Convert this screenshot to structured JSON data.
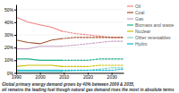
{
  "chart_data": {
    "type": "line",
    "title": "Global primary energy demand grows by 40% between 2009 & 2035,",
    "subtitle": "oil remains the leading fuel though natural gas demand rises the most in absolute terms",
    "x": [
      1990,
      1995,
      2000,
      2005,
      2009,
      2015,
      2020,
      2025,
      2030,
      2035
    ],
    "series": [
      {
        "name": "Oil",
        "color": "#f08080",
        "line_style": "solid",
        "values": [
          44,
          40,
          38,
          36,
          33,
          null,
          null,
          null,
          null,
          null
        ]
      },
      {
        "name": "Oil",
        "color": "#f08080",
        "line_style": "dashed",
        "values": [
          null,
          null,
          null,
          null,
          33,
          31,
          30,
          29,
          28,
          28
        ]
      },
      {
        "name": "Coal",
        "color": "#a0522d",
        "line_style": "solid",
        "values": [
          26,
          24,
          23,
          26,
          27,
          null,
          null,
          null,
          null,
          null
        ]
      },
      {
        "name": "Coal",
        "color": "#a0522d",
        "line_style": "dashed",
        "values": [
          null,
          null,
          null,
          null,
          27,
          28,
          28,
          28,
          28,
          28
        ]
      },
      {
        "name": "Gas",
        "color": "#c8a0c8",
        "line_style": "solid",
        "values": [
          19,
          19,
          21,
          21,
          21,
          null,
          null,
          null,
          null,
          null
        ]
      },
      {
        "name": "Gas",
        "color": "#c8a0c8",
        "line_style": "dashed",
        "values": [
          null,
          null,
          null,
          null,
          21,
          22,
          23,
          24,
          25,
          25
        ]
      },
      {
        "name": "Biomass and waste",
        "color": "#20b090",
        "line_style": "solid",
        "values": [
          11,
          11,
          10,
          10,
          10,
          null,
          null,
          null,
          null,
          null
        ]
      },
      {
        "name": "Biomass and waste",
        "color": "#20b090",
        "line_style": "dashed",
        "values": [
          null,
          null,
          null,
          null,
          10,
          10,
          10,
          11,
          11,
          11
        ]
      },
      {
        "name": "Nuclear",
        "color": "#c8c000",
        "line_style": "solid",
        "values": [
          5,
          6,
          6,
          6,
          5,
          null,
          null,
          null,
          null,
          null
        ]
      },
      {
        "name": "Nuclear",
        "color": "#c8c000",
        "line_style": "dashed",
        "values": [
          null,
          null,
          null,
          null,
          5,
          5,
          5,
          6,
          6,
          6
        ]
      },
      {
        "name": "Other renewables",
        "color": "#80d0c8",
        "line_style": "solid",
        "values": [
          1,
          1,
          1,
          1,
          1,
          null,
          null,
          null,
          null,
          null
        ]
      },
      {
        "name": "Other renewables",
        "color": "#80d0c8",
        "line_style": "dashed",
        "values": [
          null,
          null,
          null,
          null,
          1,
          2,
          2,
          3,
          4,
          4
        ]
      },
      {
        "name": "Hydro",
        "color": "#00b8d8",
        "line_style": "solid",
        "values": [
          2,
          2,
          2,
          2,
          2,
          null,
          null,
          null,
          null,
          null
        ]
      },
      {
        "name": "Hydro",
        "color": "#00b8d8",
        "line_style": "dashed",
        "values": [
          null,
          null,
          null,
          null,
          2,
          2,
          2,
          2,
          2,
          3
        ]
      }
    ],
    "xlim": [
      1990,
      2035
    ],
    "xticks": [
      1990,
      2000,
      2010,
      2020,
      2030
    ],
    "ylim": [
      0,
      54
    ],
    "yticks": [
      {
        "value": 0,
        "label": "0%"
      },
      {
        "value": 10,
        "label": "10%"
      },
      {
        "value": 20,
        "label": "20%"
      },
      {
        "value": 30,
        "label": "30%"
      },
      {
        "value": 40,
        "label": "40%"
      },
      {
        "value": 50,
        "label": "50%"
      }
    ],
    "grid": true,
    "legend": "right"
  }
}
